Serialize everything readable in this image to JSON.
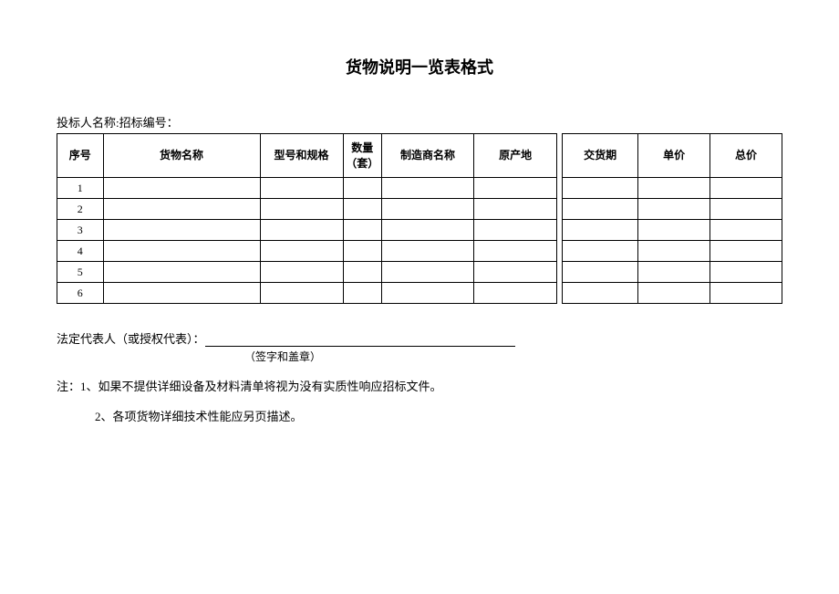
{
  "title": "货物说明一览表格式",
  "bidder_label": "投标人名称:招标编号：",
  "table": {
    "headers": {
      "seq": "序号",
      "name": "货物名称",
      "spec": "型号和规格",
      "qty_line1": "数量",
      "qty_line2": "（套）",
      "mfr": "制造商名称",
      "origin": "原产地",
      "delivery": "交货期",
      "unit_price": "单价",
      "total_price": "总价"
    },
    "rows": [
      {
        "seq": "1",
        "name": "",
        "spec": "",
        "qty": "",
        "mfr": "",
        "origin": "",
        "delivery": "",
        "unit": "",
        "total": ""
      },
      {
        "seq": "2",
        "name": "",
        "spec": "",
        "qty": "",
        "mfr": "",
        "origin": "",
        "delivery": "",
        "unit": "",
        "total": ""
      },
      {
        "seq": "3",
        "name": "",
        "spec": "",
        "qty": "",
        "mfr": "",
        "origin": "",
        "delivery": "",
        "unit": "",
        "total": ""
      },
      {
        "seq": "4",
        "name": "",
        "spec": "",
        "qty": "",
        "mfr": "",
        "origin": "",
        "delivery": "",
        "unit": "",
        "total": ""
      },
      {
        "seq": "5",
        "name": "",
        "spec": "",
        "qty": "",
        "mfr": "",
        "origin": "",
        "delivery": "",
        "unit": "",
        "total": ""
      },
      {
        "seq": "6",
        "name": "",
        "spec": "",
        "qty": "",
        "mfr": "",
        "origin": "",
        "delivery": "",
        "unit": "",
        "total": ""
      }
    ]
  },
  "footer": {
    "rep_label": "法定代表人（或授权代表）：",
    "sign_note": "（签字和盖章）",
    "note1": "注：1、如果不提供详细设备及材料清单将视为没有实质性响应招标文件。",
    "note2": "2、各项货物详细技术性能应另页描述。"
  }
}
